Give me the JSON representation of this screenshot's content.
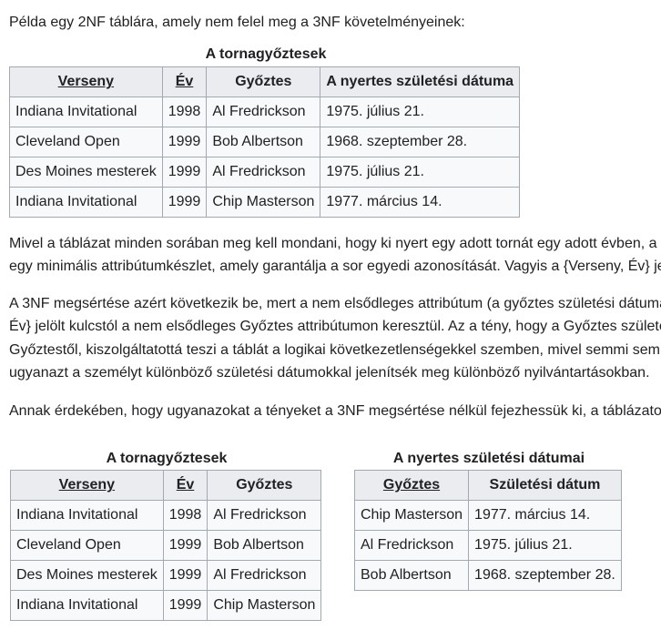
{
  "intro": "Példa egy 2NF táblára, amely nem felel meg a 3NF követelményeinek:",
  "table1": {
    "caption": "A tornagyőztesek",
    "headers": [
      "Verseny",
      "Év",
      "Győztes",
      "A nyertes születési dátuma"
    ],
    "rows": [
      [
        "Indiana Invitational",
        "1998",
        "Al Fredrickson",
        "1975. július 21."
      ],
      [
        "Cleveland Open",
        "1999",
        "Bob Albertson",
        "1968. szeptember 28."
      ],
      [
        "Des Moines mesterek",
        "1999",
        "Al Fredrickson",
        "1975. július 21."
      ],
      [
        "Indiana Invitational",
        "1999",
        "Chip Masterson",
        "1977. március 14."
      ]
    ]
  },
  "paragraph1": {
    "line1": "Mivel a táblázat minden sorában meg kell mondani, hogy ki nyert egy adott tornát egy adott évben, a",
    "line2": "egy minimális attribútumkészlet, amely garantálja a sor egyedi azonosítását. Vagyis a {Verseny, Év} je"
  },
  "paragraph2": {
    "line1": "A 3NF megsértése azért következik be, mert a nem elsődleges attribútum (a győztes születési dátuma",
    "line2": "Év} jelölt kulcstól a nem elsődleges Győztes attribútumon keresztül. Az a tény, hogy a Győztes születé",
    "line3": "Győztestől, kiszolgáltatottá teszi a táblát a logikai következetlenségekkel szemben, mivel semmi sem",
    "line4": "ugyanazt a személyt különböző születési dátumokkal jelenítsék meg különböző nyilvántartásokban."
  },
  "paragraph3": "Annak érdekében, hogy ugyanazokat a tényeket a 3NF megsértése nélkül fejezhessük ki, a táblázato",
  "table2": {
    "caption": "A tornagyőztesek",
    "headers": [
      "Verseny",
      "Év",
      "Győztes"
    ],
    "rows": [
      [
        "Indiana Invitational",
        "1998",
        "Al Fredrickson"
      ],
      [
        "Cleveland Open",
        "1999",
        "Bob Albertson"
      ],
      [
        "Des Moines mesterek",
        "1999",
        "Al Fredrickson"
      ],
      [
        "Indiana Invitational",
        "1999",
        "Chip Masterson"
      ]
    ]
  },
  "table3": {
    "caption": "A nyertes születési dátumai",
    "headers": [
      "Győztes",
      "Születési dátum"
    ],
    "rows": [
      [
        "Chip Masterson",
        "1977. március 14."
      ],
      [
        "Al Fredrickson",
        "1975. július 21."
      ],
      [
        "Bob Albertson",
        "1968. szeptember 28."
      ]
    ]
  }
}
